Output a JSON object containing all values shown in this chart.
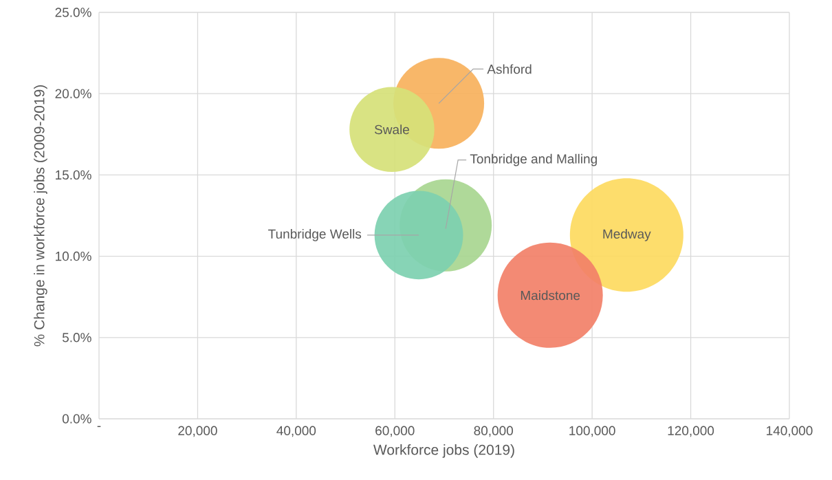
{
  "chart_data": {
    "type": "bubble",
    "xlabel": "Workforce jobs (2019)",
    "ylabel": "% Change in workforce jobs (2009-2019)",
    "xlim": [
      0,
      140000
    ],
    "ylim": [
      0,
      25
    ],
    "xticks": [
      {
        "value": 0,
        "label": "-"
      },
      {
        "value": 20000,
        "label": "20,000"
      },
      {
        "value": 40000,
        "label": "40,000"
      },
      {
        "value": 60000,
        "label": "60,000"
      },
      {
        "value": 80000,
        "label": "80,000"
      },
      {
        "value": 100000,
        "label": "100,000"
      },
      {
        "value": 120000,
        "label": "120,000"
      },
      {
        "value": 140000,
        "label": "140,000"
      }
    ],
    "yticks": [
      {
        "value": 0,
        "label": "0.0%"
      },
      {
        "value": 5,
        "label": "5.0%"
      },
      {
        "value": 10,
        "label": "10.0%"
      },
      {
        "value": 15,
        "label": "15.0%"
      },
      {
        "value": 20,
        "label": "20.0%"
      },
      {
        "value": 25,
        "label": "25.0%"
      }
    ],
    "grid": true,
    "series": [
      {
        "name": "Ashford",
        "color": "#f7b15c",
        "x": [
          68900
        ],
        "values": [
          19.4
        ],
        "sizes": [
          0.64
        ]
      },
      {
        "name": "Swale",
        "color": "#d6e178",
        "x": [
          59400
        ],
        "values": [
          17.8
        ],
        "sizes": [
          0.56
        ]
      },
      {
        "name": "Tonbridge and Malling",
        "color": "#a8d690",
        "x": [
          70300
        ],
        "values": [
          11.9
        ],
        "sizes": [
          0.66
        ]
      },
      {
        "name": "Tunbridge Wells",
        "color": "#7dd0b0",
        "x": [
          64850
        ],
        "values": [
          11.3
        ],
        "sizes": [
          0.61
        ]
      },
      {
        "name": "Medway",
        "color": "#fdda60",
        "x": [
          107000
        ],
        "values": [
          11.3
        ],
        "sizes": [
          1
        ]
      },
      {
        "name": "Maidstone",
        "color": "#f28068",
        "x": [
          91500
        ],
        "values": [
          7.6
        ],
        "sizes": [
          0.86
        ]
      }
    ]
  }
}
